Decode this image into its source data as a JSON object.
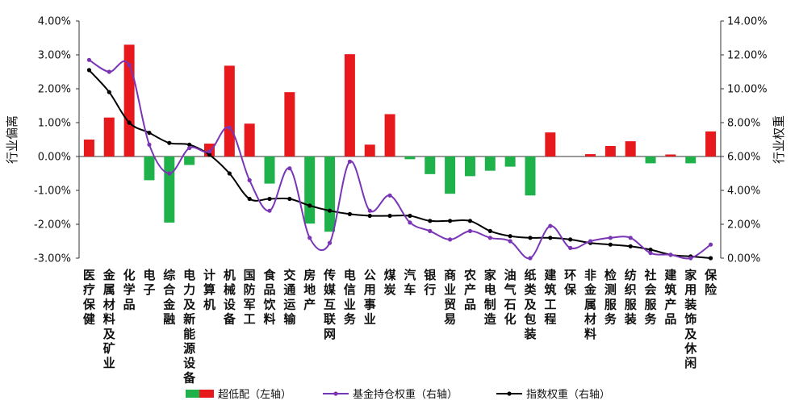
{
  "chart_data": {
    "type": "bar",
    "title": "",
    "categories": [
      "医疗保健",
      "金属材料及矿业",
      "化学品",
      "电子",
      "综合金融",
      "电力及新能源设备",
      "计算机",
      "机械设备",
      "国防军工",
      "食品饮料",
      "交通运输",
      "房地产",
      "传媒互联网",
      "电信业务",
      "公用事业",
      "煤炭",
      "汽车",
      "银行",
      "商业贸易",
      "农产品",
      "家电制造",
      "油气石化",
      "纸类及包装",
      "建筑工程",
      "环保",
      "非金属材料",
      "检测服务",
      "纺织服装",
      "社会服务",
      "建筑产品",
      "家用装饰及休闲",
      "保险"
    ],
    "ylabel_left": "行业偏离",
    "ylabel_right": "行业权重",
    "ylim_left": [
      -0.03,
      0.04
    ],
    "ylim_right": [
      0,
      0.14
    ],
    "left_ticks": [
      "4.00%",
      "3.00%",
      "2.00%",
      "1.00%",
      "0.00%",
      "-1.00%",
      "-2.00%",
      "-3.00%"
    ],
    "right_ticks": [
      "14.00%",
      "12.00%",
      "10.00%",
      "8.00%",
      "6.00%",
      "4.00%",
      "2.00%",
      "0.00%"
    ],
    "series": [
      {
        "name": "超低配（左轴）",
        "axis": "left",
        "kind": "bar",
        "values": [
          0.5,
          1.15,
          3.3,
          -0.7,
          -1.95,
          -0.25,
          0.38,
          2.68,
          0.97,
          -0.8,
          1.9,
          -1.98,
          -2.22,
          3.02,
          0.35,
          1.25,
          -0.08,
          -0.52,
          -1.1,
          -0.58,
          -0.42,
          -0.3,
          -1.15,
          0.71,
          0.0,
          0.07,
          0.31,
          0.45,
          -0.2,
          0.06,
          -0.2,
          0.74
        ]
      },
      {
        "name": "基金持仓权重（右轴）",
        "axis": "right",
        "kind": "line",
        "values": [
          11.7,
          11.0,
          11.4,
          6.7,
          5.0,
          6.5,
          6.3,
          7.7,
          4.6,
          2.8,
          5.3,
          1.2,
          0.9,
          5.7,
          2.8,
          3.7,
          2.1,
          1.6,
          1.1,
          1.6,
          1.2,
          1.0,
          0.0,
          1.9,
          0.6,
          1.0,
          1.2,
          1.2,
          0.3,
          0.2,
          0.0,
          0.8
        ]
      },
      {
        "name": "指数权重（右轴）",
        "axis": "right",
        "kind": "line",
        "values": [
          11.1,
          9.8,
          8.0,
          7.4,
          6.8,
          6.7,
          6.1,
          5.0,
          3.5,
          3.5,
          3.5,
          3.1,
          2.8,
          2.6,
          2.5,
          2.5,
          2.5,
          2.2,
          2.2,
          2.2,
          1.6,
          1.3,
          1.2,
          1.2,
          1.1,
          0.9,
          0.8,
          0.7,
          0.5,
          0.2,
          0.1,
          0.0
        ]
      }
    ],
    "colors": {
      "pos": "#e8191c",
      "neg": "#1fb24a",
      "fund": "#7a35b5",
      "index": "#000000"
    }
  }
}
